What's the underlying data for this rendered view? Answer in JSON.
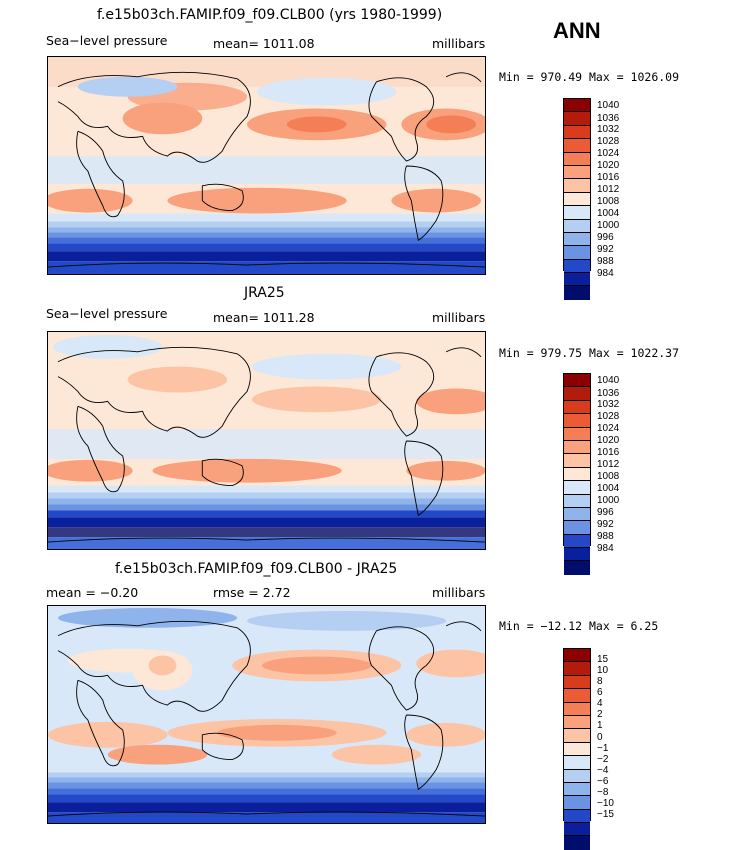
{
  "season": "ANN",
  "panels": [
    {
      "title": "f.e15b03ch.FAMIP.f09_f09.CLB00 (yrs 1980-1999)",
      "left_label": "Sea−level pressure",
      "center_label": "mean= 1011.08",
      "right_label": "millibars",
      "minmax": "Min = 970.49 Max = 1026.09",
      "colorbar_labels": [
        "1040",
        "1036",
        "1032",
        "1028",
        "1024",
        "1020",
        "1016",
        "1012",
        "1008",
        "1004",
        "1000",
        "996",
        "992",
        "988",
        "984"
      ]
    },
    {
      "title": "JRA25",
      "left_label": "Sea−level pressure",
      "center_label": "mean= 1011.28",
      "right_label": "millibars",
      "minmax": "Min = 979.75 Max = 1022.37",
      "colorbar_labels": [
        "1040",
        "1036",
        "1032",
        "1028",
        "1024",
        "1020",
        "1016",
        "1012",
        "1008",
        "1004",
        "1000",
        "996",
        "992",
        "988",
        "984"
      ]
    },
    {
      "title": "f.e15b03ch.FAMIP.f09_f09.CLB00 - JRA25",
      "left_label": "mean =   −0.20",
      "center_label": "rmse =    2.72",
      "right_label": "millibars",
      "minmax": "Min = −12.12 Max =    6.25",
      "colorbar_labels": [
        "15",
        "10",
        "8",
        "6",
        "4",
        "2",
        "1",
        "0",
        "−1",
        "−2",
        "−4",
        "−6",
        "−8",
        "−10",
        "−15"
      ]
    }
  ],
  "colors": {
    "scale": [
      "#8b0000",
      "#b31c0c",
      "#d93c1c",
      "#ea5b36",
      "#f47f57",
      "#f9a07c",
      "#fcc3a5",
      "#fde7d6",
      "#d9e8f8",
      "#b4cff2",
      "#8fb3eb",
      "#6b93e3",
      "#4570da",
      "#2449c8",
      "#0a1f9c",
      "#000d6b"
    ],
    "ocean_base": "#fde7d6",
    "land_outline": "#000000"
  }
}
